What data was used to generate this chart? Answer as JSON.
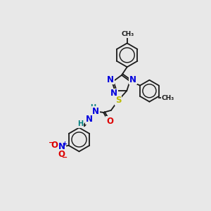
{
  "bg_color": "#e8e8e8",
  "bond_color": "#1a1a1a",
  "atom_colors": {
    "N": "#0000dd",
    "O": "#dd0000",
    "S": "#bbbb00",
    "H": "#008080",
    "C": "#1a1a1a"
  },
  "font_size_atom": 8.5,
  "font_size_small": 7.0,
  "font_size_methyl": 6.5
}
